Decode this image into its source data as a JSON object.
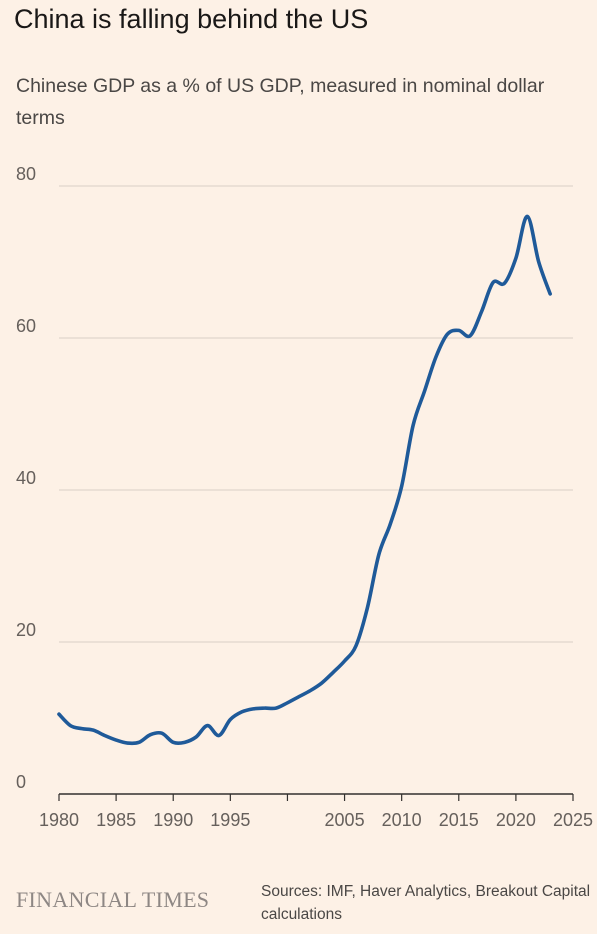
{
  "title": "China is falling behind the US",
  "subtitle": "Chinese GDP as a % of US GDP, measured in nominal dollar terms",
  "brand": "FINANCIAL TIMES",
  "source": "Sources: IMF, Haver Analytics, Breakout Capital calculations",
  "colors": {
    "background": "#fdf1e6",
    "line": "#1f5a99",
    "grid": "#d9cfc7",
    "axis": "#33302e"
  },
  "chart_data": {
    "type": "line",
    "title": "China is falling behind the US",
    "subtitle": "Chinese GDP as a % of US GDP, measured in nominal dollar terms",
    "xlabel": "",
    "ylabel": "",
    "xlim": [
      1980,
      2025
    ],
    "ylim": [
      0,
      80
    ],
    "grid": true,
    "yticks": [
      {
        "value": 0,
        "label": "0"
      },
      {
        "value": 20,
        "label": "20"
      },
      {
        "value": 40,
        "label": "40"
      },
      {
        "value": 60,
        "label": "60"
      },
      {
        "value": 80,
        "label": "80"
      }
    ],
    "xticks": [
      {
        "value": 1980,
        "label": "1980"
      },
      {
        "value": 1985,
        "label": "1985"
      },
      {
        "value": 1990,
        "label": "1990"
      },
      {
        "value": 1995,
        "label": "1995"
      },
      {
        "value": 2000,
        "label": ""
      },
      {
        "value": 2005,
        "label": "2005"
      },
      {
        "value": 2010,
        "label": "2010"
      },
      {
        "value": 2015,
        "label": "2015"
      },
      {
        "value": 2020,
        "label": "2020"
      },
      {
        "value": 2025,
        "label": "2025"
      }
    ],
    "series": [
      {
        "x": [
          1980,
          1981,
          1982,
          1983,
          1984,
          1985,
          1986,
          1987,
          1988,
          1989,
          1990,
          1991,
          1992,
          1993,
          1994,
          1995,
          1996,
          1997,
          1998,
          1999,
          2000,
          2001,
          2002,
          2003,
          2004,
          2005,
          2006,
          2007,
          2008,
          2009,
          2010,
          2011,
          2012,
          2013,
          2014,
          2015,
          2016,
          2017,
          2018,
          2019,
          2020,
          2021,
          2022,
          2023
        ],
        "y": [
          10.5,
          9.0,
          8.6,
          8.4,
          7.7,
          7.1,
          6.7,
          6.8,
          7.8,
          8.0,
          6.8,
          6.8,
          7.5,
          9.0,
          7.7,
          9.8,
          10.8,
          11.2,
          11.3,
          11.3,
          12.0,
          12.8,
          13.6,
          14.6,
          16.0,
          17.5,
          19.5,
          24.5,
          31.5,
          35.5,
          40.5,
          48.5,
          53.0,
          57.5,
          60.5,
          61.0,
          60.3,
          63.5,
          67.3,
          67.2,
          70.5,
          76.0,
          70.0,
          65.8
        ]
      }
    ]
  }
}
